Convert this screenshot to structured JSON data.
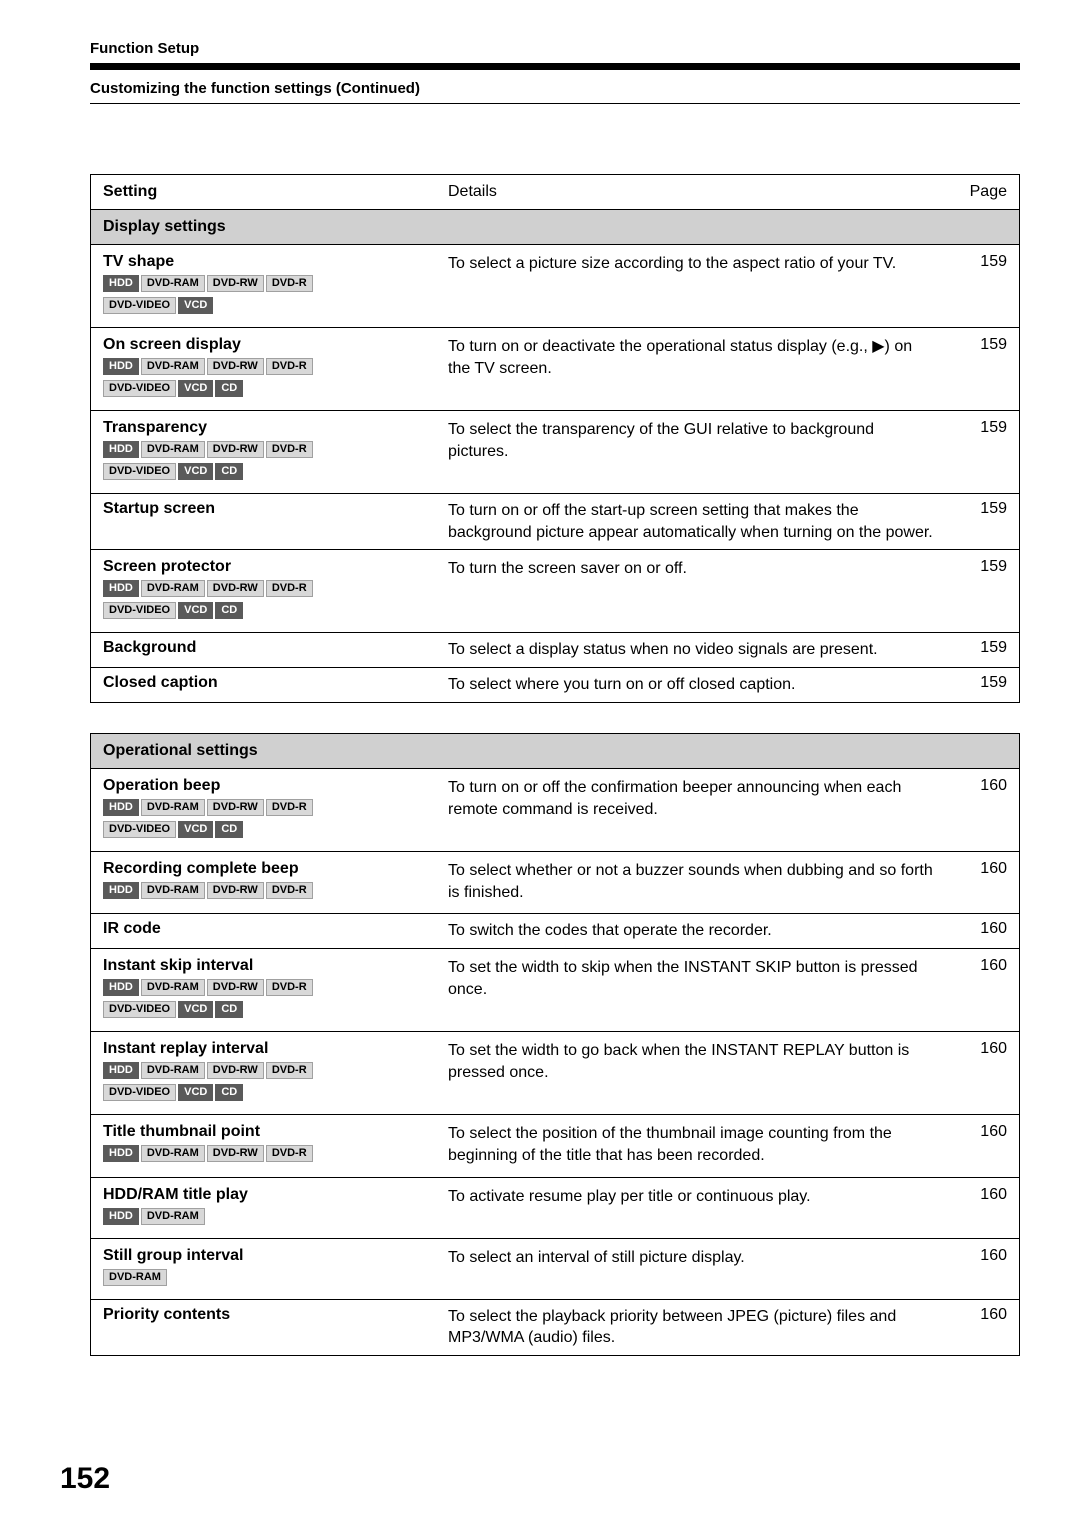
{
  "header": {
    "breadcrumb": "Function Setup",
    "subtitle": "Customizing the function settings (Continued)"
  },
  "table_headers": {
    "setting": "Setting",
    "details": "Details",
    "page": "Page"
  },
  "sections": [
    {
      "title": "Display settings",
      "rows": [
        {
          "name": "TV shape",
          "badges": [
            [
              "HDD",
              "dark"
            ],
            [
              "DVD-RAM",
              "light"
            ],
            [
              "DVD-RW",
              "light"
            ],
            [
              "DVD-R",
              "light"
            ],
            [
              "DVD-VIDEO",
              "light"
            ],
            [
              "VCD",
              "dark"
            ]
          ],
          "details": "To select a picture size according to the aspect ratio of your TV.",
          "page": "159"
        },
        {
          "name": "On screen display",
          "badges": [
            [
              "HDD",
              "dark"
            ],
            [
              "DVD-RAM",
              "light"
            ],
            [
              "DVD-RW",
              "light"
            ],
            [
              "DVD-R",
              "light"
            ],
            [
              "DVD-VIDEO",
              "light"
            ],
            [
              "VCD",
              "dark"
            ],
            [
              "CD",
              "dark"
            ]
          ],
          "details": "To turn on or deactivate the operational status display (e.g., ▶) on the TV screen.",
          "page": "159"
        },
        {
          "name": "Transparency",
          "badges": [
            [
              "HDD",
              "dark"
            ],
            [
              "DVD-RAM",
              "light"
            ],
            [
              "DVD-RW",
              "light"
            ],
            [
              "DVD-R",
              "light"
            ],
            [
              "DVD-VIDEO",
              "light"
            ],
            [
              "VCD",
              "dark"
            ],
            [
              "CD",
              "dark"
            ]
          ],
          "details": "To select the transparency of the GUI relative to background pictures.",
          "page": "159"
        },
        {
          "name": "Startup screen",
          "badges": [],
          "details": "To turn on or off the start-up screen setting that makes the background picture appear automatically when turning on the power.",
          "page": "159"
        },
        {
          "name": "Screen protector",
          "badges": [
            [
              "HDD",
              "dark"
            ],
            [
              "DVD-RAM",
              "light"
            ],
            [
              "DVD-RW",
              "light"
            ],
            [
              "DVD-R",
              "light"
            ],
            [
              "DVD-VIDEO",
              "light"
            ],
            [
              "VCD",
              "dark"
            ],
            [
              "CD",
              "dark"
            ]
          ],
          "details": "To turn the screen saver on or off.",
          "page": "159"
        },
        {
          "name": "Background",
          "badges": [],
          "details": "To select a display status when no video signals are present.",
          "page": "159"
        },
        {
          "name": "Closed caption",
          "badges": [],
          "details": "To select where you turn on or off closed caption.",
          "page": "159"
        }
      ]
    },
    {
      "title": "Operational settings",
      "rows": [
        {
          "name": "Operation beep",
          "badges": [
            [
              "HDD",
              "dark"
            ],
            [
              "DVD-RAM",
              "light"
            ],
            [
              "DVD-RW",
              "light"
            ],
            [
              "DVD-R",
              "light"
            ],
            [
              "DVD-VIDEO",
              "light"
            ],
            [
              "VCD",
              "dark"
            ],
            [
              "CD",
              "dark"
            ]
          ],
          "details": "To turn on or off the confirmation beeper announcing when each remote command is received.",
          "page": "160"
        },
        {
          "name": "Recording complete beep",
          "badges": [
            [
              "HDD",
              "dark"
            ],
            [
              "DVD-RAM",
              "light"
            ],
            [
              "DVD-RW",
              "light"
            ],
            [
              "DVD-R",
              "light"
            ]
          ],
          "details": "To select whether or not a buzzer sounds when dubbing and so forth is finished.",
          "page": "160"
        },
        {
          "name": "IR code",
          "badges": [],
          "details": "To switch the codes that operate the recorder.",
          "page": "160"
        },
        {
          "name": "Instant skip interval",
          "badges": [
            [
              "HDD",
              "dark"
            ],
            [
              "DVD-RAM",
              "light"
            ],
            [
              "DVD-RW",
              "light"
            ],
            [
              "DVD-R",
              "light"
            ],
            [
              "DVD-VIDEO",
              "light"
            ],
            [
              "VCD",
              "dark"
            ],
            [
              "CD",
              "dark"
            ]
          ],
          "details": "To set the width to skip when the INSTANT SKIP button is pressed once.",
          "page": "160"
        },
        {
          "name": "Instant replay interval",
          "badges": [
            [
              "HDD",
              "dark"
            ],
            [
              "DVD-RAM",
              "light"
            ],
            [
              "DVD-RW",
              "light"
            ],
            [
              "DVD-R",
              "light"
            ],
            [
              "DVD-VIDEO",
              "light"
            ],
            [
              "VCD",
              "dark"
            ],
            [
              "CD",
              "dark"
            ]
          ],
          "details": "To set the width to go back when the INSTANT REPLAY button is pressed once.",
          "page": "160"
        },
        {
          "name": "Title thumbnail point",
          "badges": [
            [
              "HDD",
              "dark"
            ],
            [
              "DVD-RAM",
              "light"
            ],
            [
              "DVD-RW",
              "light"
            ],
            [
              "DVD-R",
              "light"
            ]
          ],
          "details": "To select the position of the thumbnail image counting from the beginning of the title that has been recorded.",
          "page": "160"
        },
        {
          "name": "HDD/RAM title play",
          "badges": [
            [
              "HDD",
              "dark"
            ],
            [
              "DVD-RAM",
              "light"
            ]
          ],
          "details": "To activate resume play per title or continuous play.",
          "page": "160"
        },
        {
          "name": "Still group interval",
          "badges": [
            [
              "DVD-RAM",
              "light"
            ]
          ],
          "details": "To select an interval of still picture display.",
          "page": "160"
        },
        {
          "name": "Priority contents",
          "badges": [],
          "details": "To select the playback priority between JPEG (picture) files and MP3/WMA (audio) files.",
          "page": "160"
        }
      ]
    }
  ],
  "page_number": "152"
}
